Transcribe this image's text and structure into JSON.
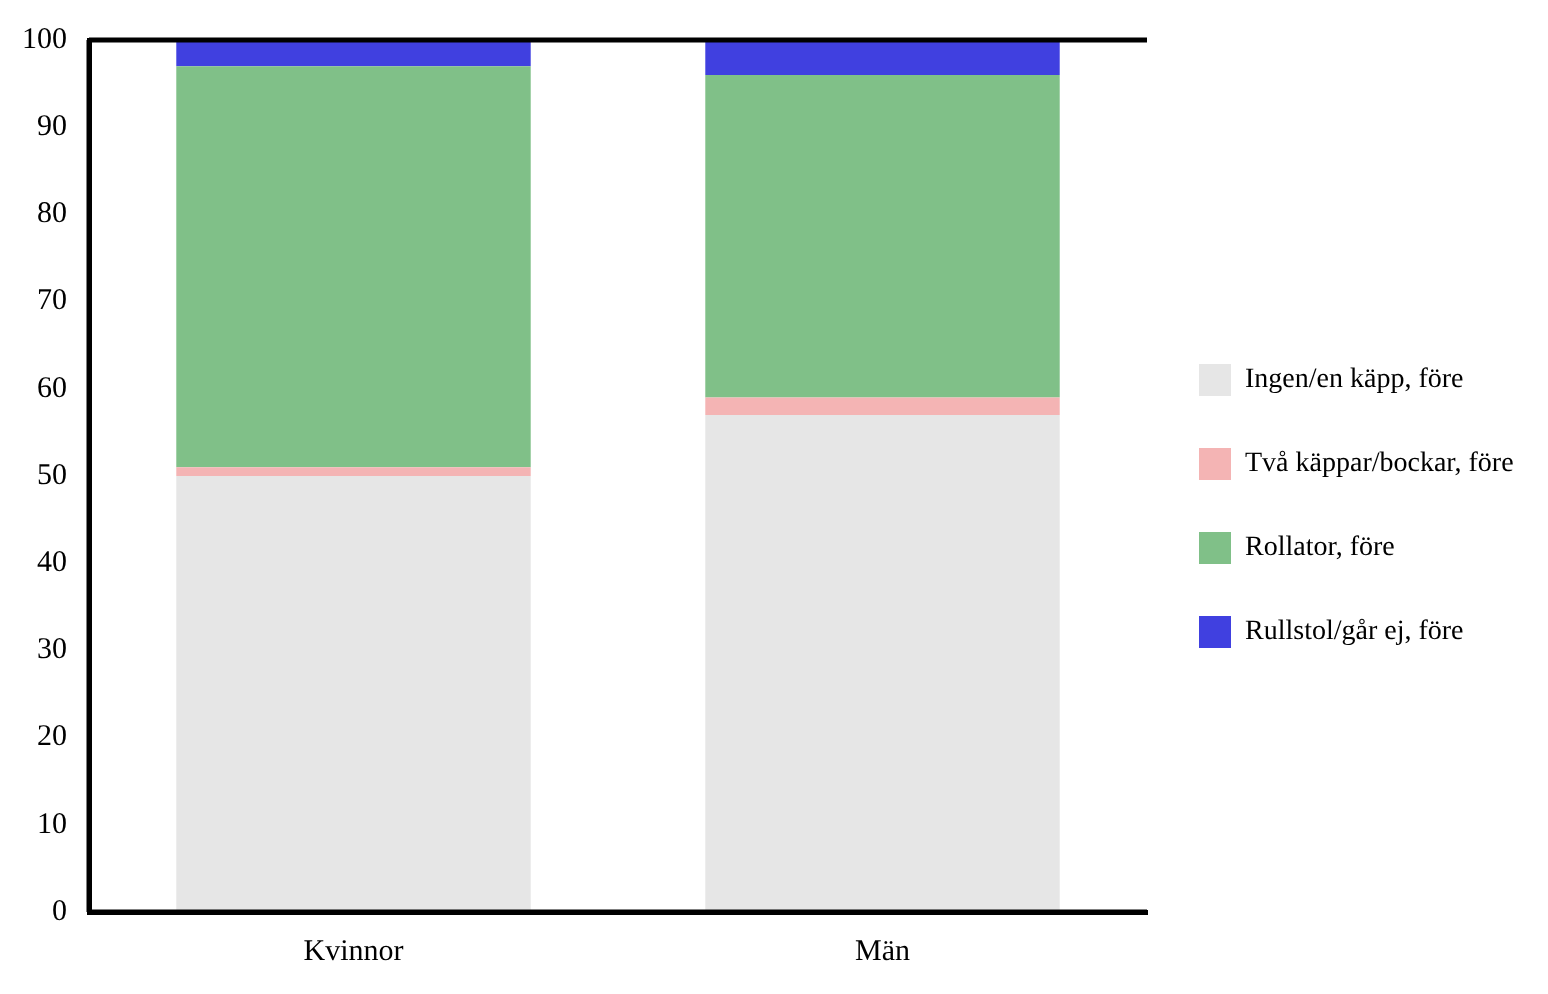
{
  "chart_data": {
    "type": "bar",
    "stacked": true,
    "categories": [
      "Kvinnor",
      "Män"
    ],
    "series": [
      {
        "name": "Ingen/en käpp, före",
        "color": "#e6e6e6",
        "values": [
          50,
          57
        ]
      },
      {
        "name": "Två käppar/bockar, före",
        "color": "#f4b4b4",
        "values": [
          1,
          2
        ]
      },
      {
        "name": "Rollator, före",
        "color": "#80c088",
        "values": [
          46,
          37
        ]
      },
      {
        "name": "Rullstol/går ej, före",
        "color": "#4040e0",
        "values": [
          3,
          4
        ]
      }
    ],
    "ylim": [
      0,
      100
    ],
    "yticks": [
      0,
      10,
      20,
      30,
      40,
      50,
      60,
      70,
      80,
      90,
      100
    ],
    "grid": false,
    "legend": "right"
  }
}
